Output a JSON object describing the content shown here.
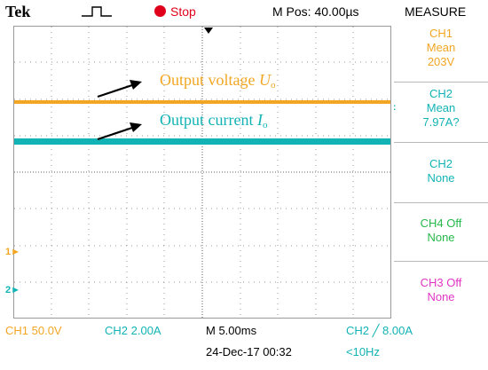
{
  "header": {
    "brand": "Tek",
    "run_state": "Stop",
    "position": "M Pos: 40.00µs",
    "menu_title": "MEASURE"
  },
  "colors": {
    "ch1": "#f2a623",
    "ch2": "#12b3b5",
    "ch3": "#e234c5",
    "ch4": "#25b84a",
    "stop": "#e0001b"
  },
  "measure_menu": [
    {
      "lines": [
        "CH1",
        "Mean",
        "203V"
      ],
      "color": "ch1"
    },
    {
      "lines": [
        "CH2",
        "Mean",
        "7.97A?"
      ],
      "color": "ch2"
    },
    {
      "lines": [
        "CH2",
        "None"
      ],
      "color": "ch2"
    },
    {
      "lines": [
        "CH4 Off",
        "None"
      ],
      "color": "ch4"
    },
    {
      "lines": [
        "CH3 Off",
        "None"
      ],
      "color": "ch3"
    }
  ],
  "annotations": {
    "voltage": {
      "text": "Output voltage ",
      "symbol": "U",
      "sub": "o"
    },
    "current": {
      "text": "Output current ",
      "symbol": "I",
      "sub": "o"
    }
  },
  "markers": {
    "ch1": "1",
    "ch2": "2"
  },
  "status": {
    "ch1_scale": "CH1  50.0V",
    "ch2_scale": "CH2  2.00A",
    "timebase": "M 5.00ms",
    "trigger": "CH2 ╱ 8.00A",
    "date": "24-Dec-17 00:32",
    "freq": "<10Hz"
  }
}
